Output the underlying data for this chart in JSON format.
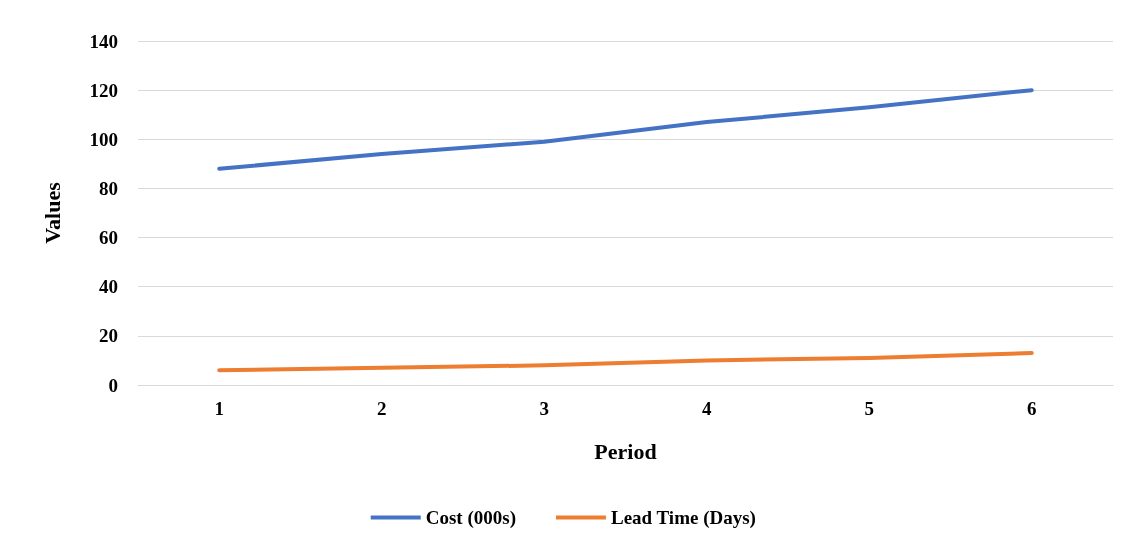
{
  "chart_data": {
    "type": "line",
    "xlabel": "Period",
    "ylabel": "Values",
    "categories": [
      "1",
      "2",
      "3",
      "4",
      "5",
      "6"
    ],
    "series": [
      {
        "name": "Cost (000s)",
        "color": "#4472c4",
        "values": [
          88,
          94,
          99,
          107,
          113,
          120
        ]
      },
      {
        "name": "Lead Time (Days)",
        "color": "#ed7d31",
        "values": [
          6,
          7,
          8,
          10,
          11,
          13
        ]
      }
    ],
    "ylim": [
      0,
      140
    ],
    "yticks": [
      0,
      20,
      40,
      60,
      80,
      100,
      120,
      140
    ],
    "grid": "y",
    "legend": "bottom",
    "marker": "none",
    "line_style": "solid"
  }
}
